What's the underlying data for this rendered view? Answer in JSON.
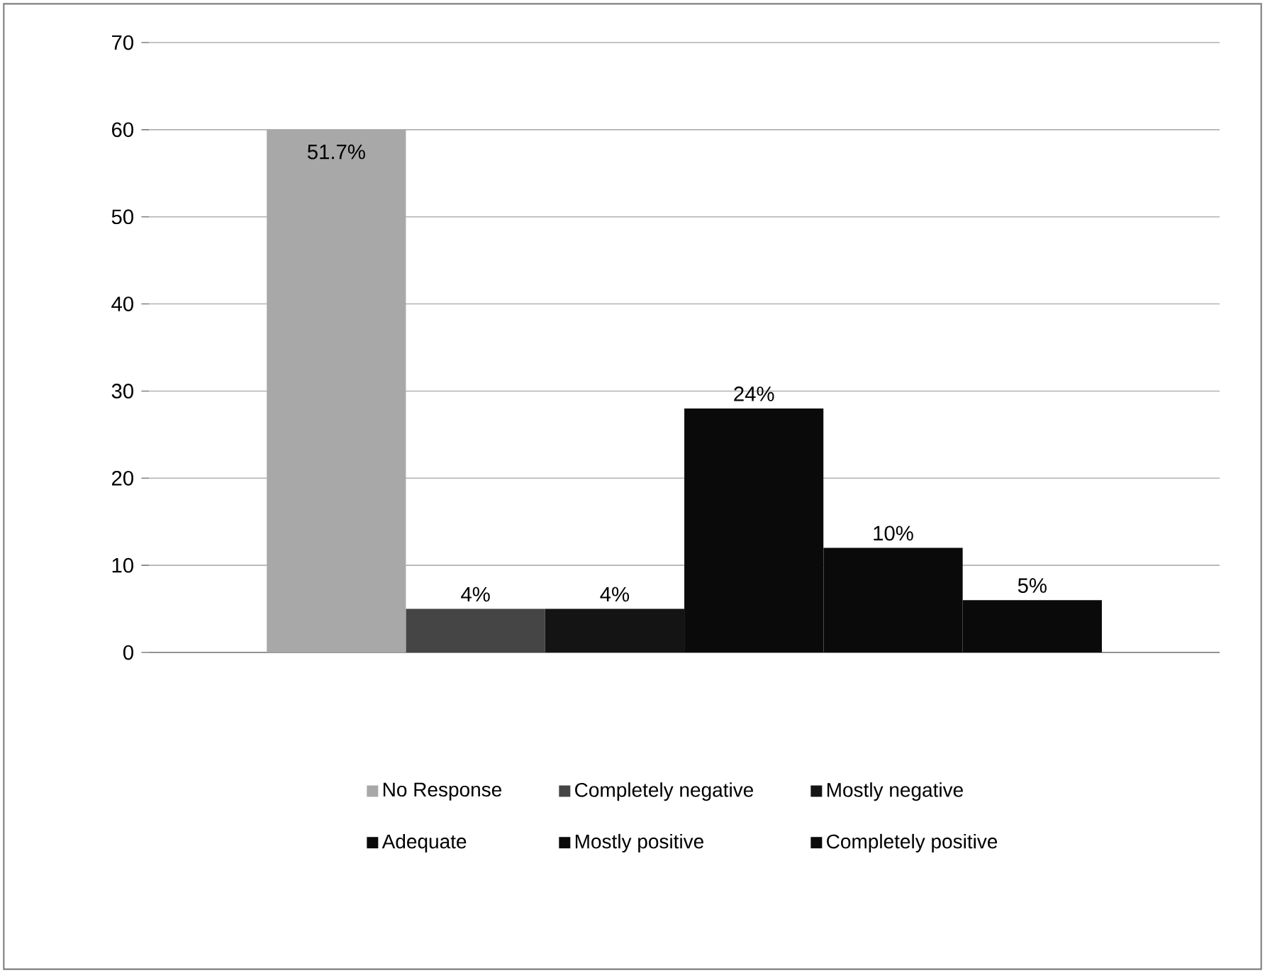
{
  "chart_data": {
    "type": "bar",
    "categories": [
      null
    ],
    "series": [
      {
        "name": "No Response",
        "color": "#a8a8a8",
        "values": [
          60
        ]
      },
      {
        "name": "Completely negative",
        "color": "#454545",
        "values": [
          5
        ]
      },
      {
        "name": "Mostly negative",
        "color": "#141414",
        "values": [
          5
        ]
      },
      {
        "name": "Adequate",
        "color": "#0a0a0a",
        "values": [
          28
        ]
      },
      {
        "name": "Mostly positive",
        "color": "#0a0a0a",
        "values": [
          12
        ]
      },
      {
        "name": "Completely positive",
        "color": "#0a0a0a",
        "values": [
          6
        ]
      }
    ],
    "annotations": [
      "51.7%",
      "4%",
      "4%",
      "24%",
      "10%",
      "5%"
    ],
    "ylim": [
      0,
      70
    ],
    "yticks": [
      0,
      10,
      20,
      30,
      40,
      50,
      60,
      70
    ],
    "grid": "y",
    "legend": "bottom"
  }
}
